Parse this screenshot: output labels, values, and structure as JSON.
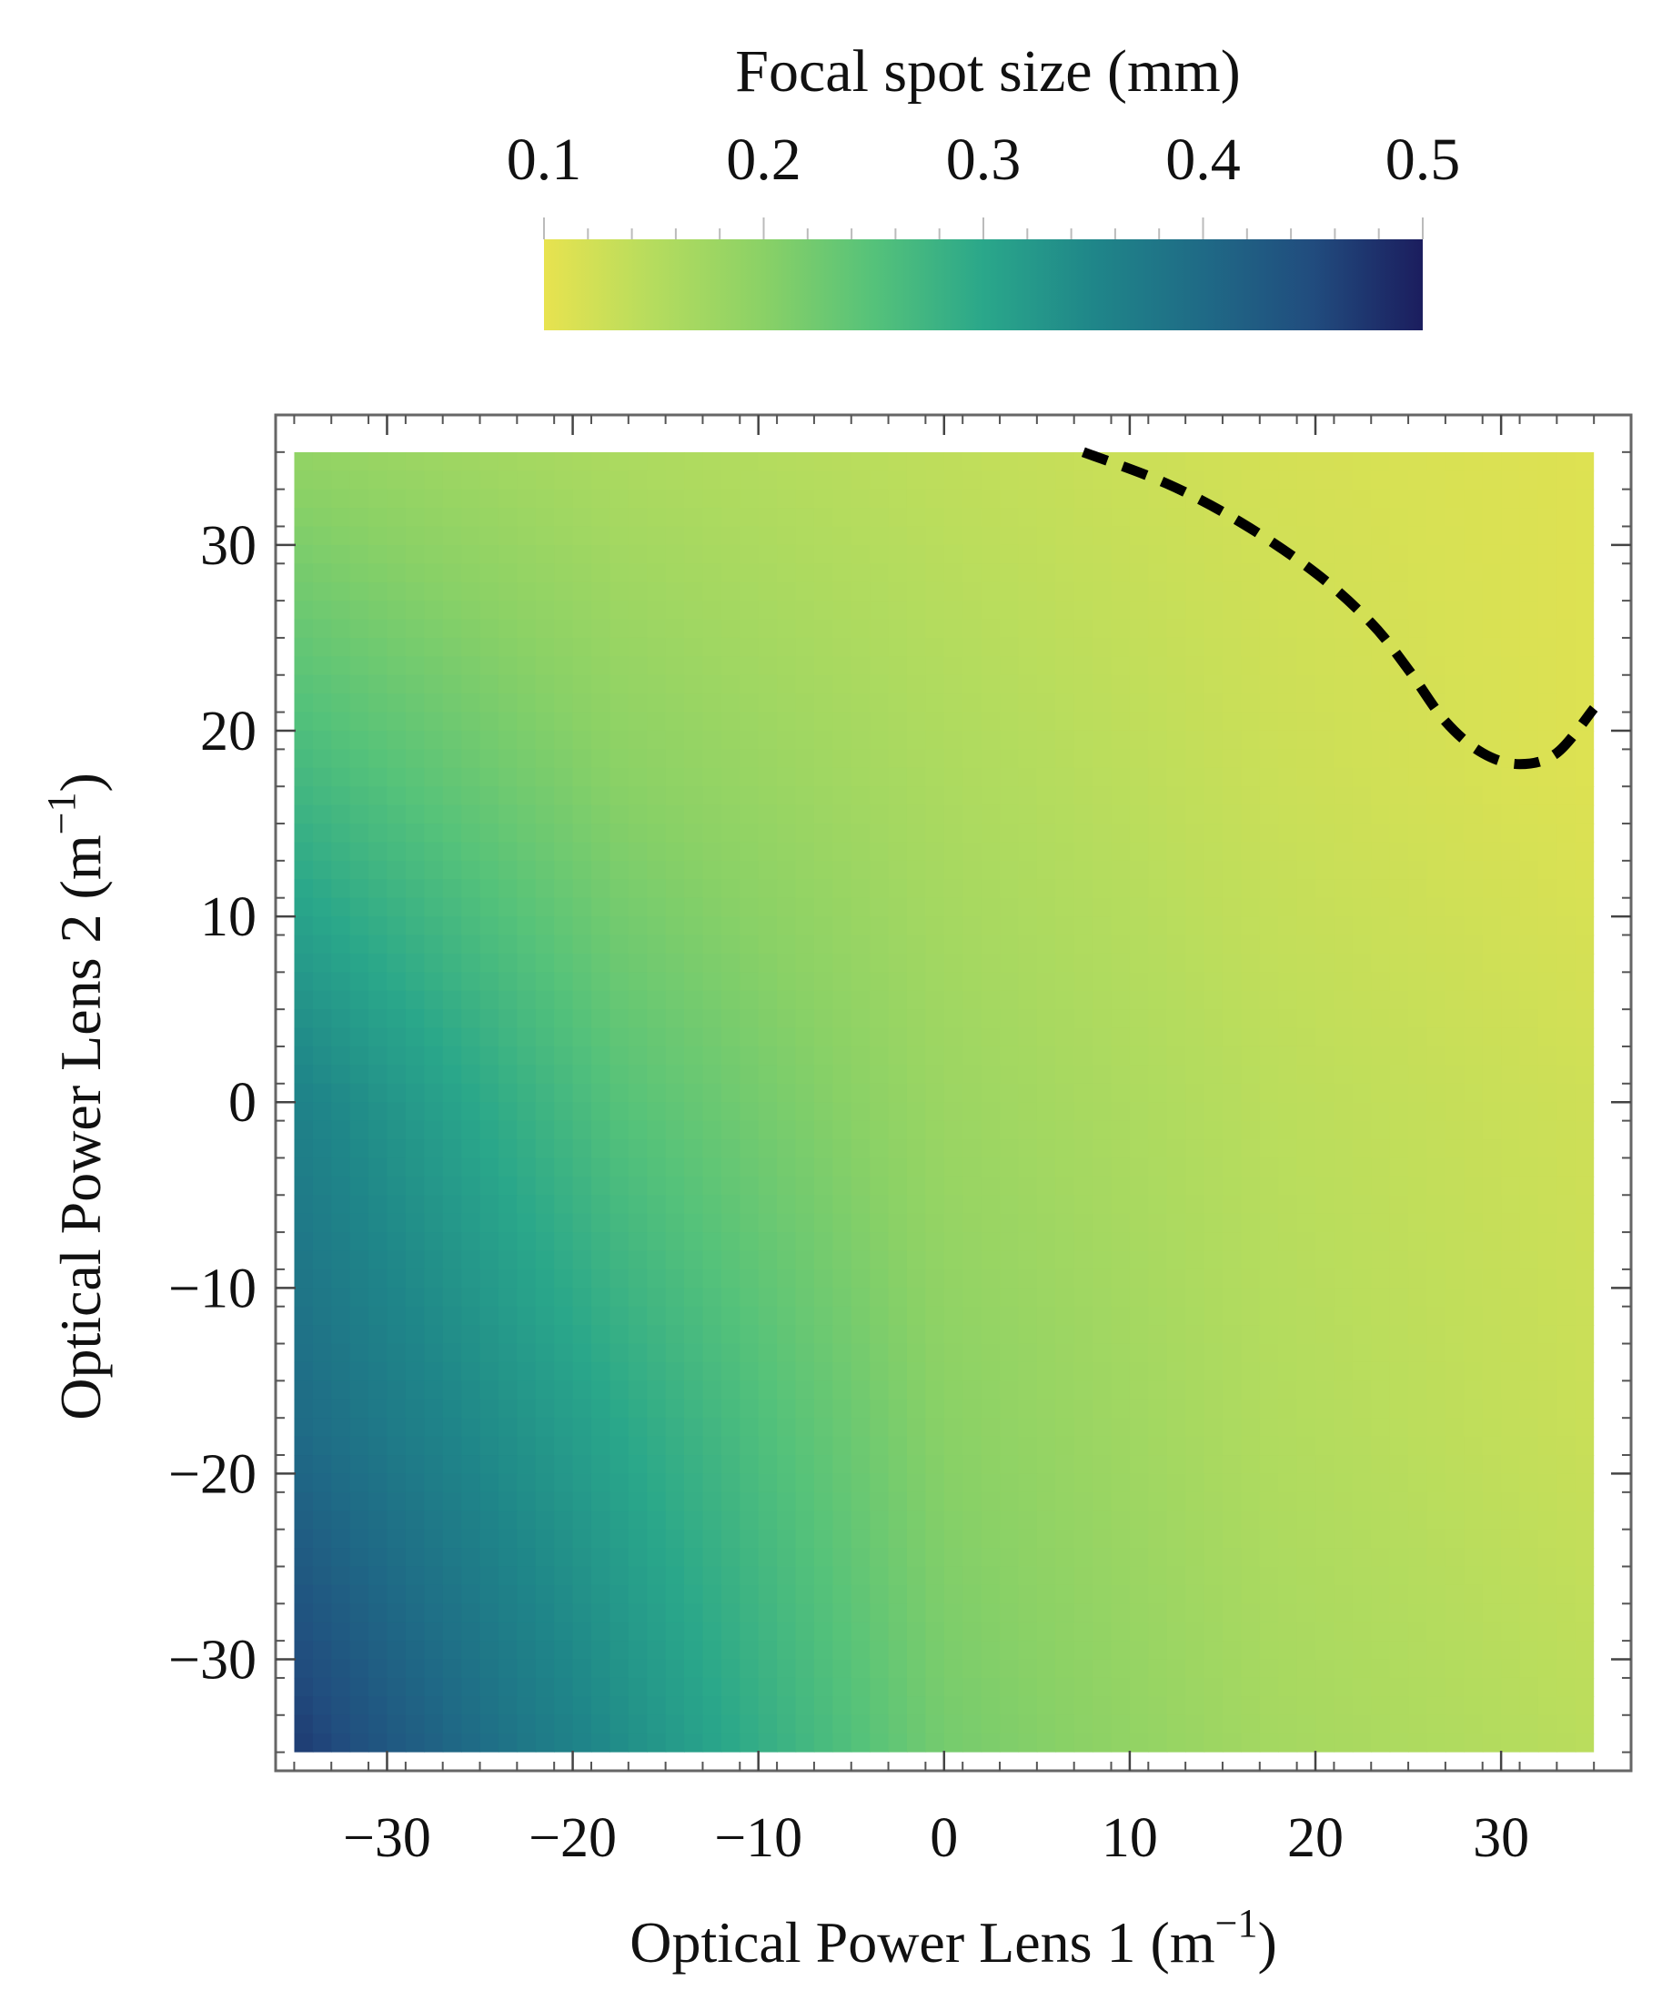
{
  "chart_data": {
    "type": "heatmap",
    "title": "",
    "xlabel": {
      "prefix": "Optical Power Lens 1 (m",
      "sup": "−1",
      "suffix": ")"
    },
    "ylabel": {
      "prefix": "Optical Power Lens 2 (m",
      "sup": "−1",
      "suffix": ")"
    },
    "xlim": [
      -36,
      37
    ],
    "ylim": [
      -36,
      37
    ],
    "data_extent": {
      "x": [
        -35,
        35
      ],
      "y": [
        -35,
        35
      ]
    },
    "x_ticks": [
      -30,
      -20,
      -10,
      0,
      10,
      20,
      30
    ],
    "x_tick_labels": [
      "−30",
      "−20",
      "−10",
      "0",
      "10",
      "20",
      "30"
    ],
    "y_ticks": [
      -30,
      -20,
      -10,
      0,
      10,
      20,
      30
    ],
    "y_tick_labels": [
      "−30",
      "−20",
      "−10",
      "0",
      "10",
      "20",
      "30"
    ],
    "colorbar": {
      "label": "Focal spot size (mm)",
      "range": [
        0.1,
        0.5
      ],
      "ticks": [
        0.1,
        0.2,
        0.3,
        0.4,
        0.5
      ],
      "tick_labels": [
        "0.1",
        "0.2",
        "0.3",
        "0.4",
        "0.5"
      ],
      "placement": "top",
      "colormap": [
        "#e8e34f",
        "#b5dc5e",
        "#8ad166",
        "#55c27a",
        "#2aa78a",
        "#1f8689",
        "#1f6a86",
        "#214c7e",
        "#1b1d5e"
      ]
    },
    "z_grid": {
      "x": [
        -35,
        -17.5,
        0,
        17.5,
        35
      ],
      "y": [
        35,
        17.5,
        0,
        -17.5,
        -35
      ],
      "z": [
        [
          0.19,
          0.16,
          0.14,
          0.12,
          0.11
        ],
        [
          0.27,
          0.2,
          0.16,
          0.13,
          0.11
        ],
        [
          0.36,
          0.25,
          0.18,
          0.145,
          0.125
        ],
        [
          0.4,
          0.3,
          0.2,
          0.155,
          0.13
        ],
        [
          0.47,
          0.34,
          0.22,
          0.17,
          0.145
        ]
      ]
    },
    "contour": {
      "style": "dashed",
      "color": "#000000",
      "points": [
        [
          7.5,
          35
        ],
        [
          12,
          33.3
        ],
        [
          16,
          31.2
        ],
        [
          20,
          28.5
        ],
        [
          23,
          25.8
        ],
        [
          25,
          23.3
        ],
        [
          27,
          20.5
        ],
        [
          29,
          18.8
        ],
        [
          31,
          18.2
        ],
        [
          33,
          18.8
        ],
        [
          35,
          21.2
        ]
      ]
    },
    "grid": false
  }
}
